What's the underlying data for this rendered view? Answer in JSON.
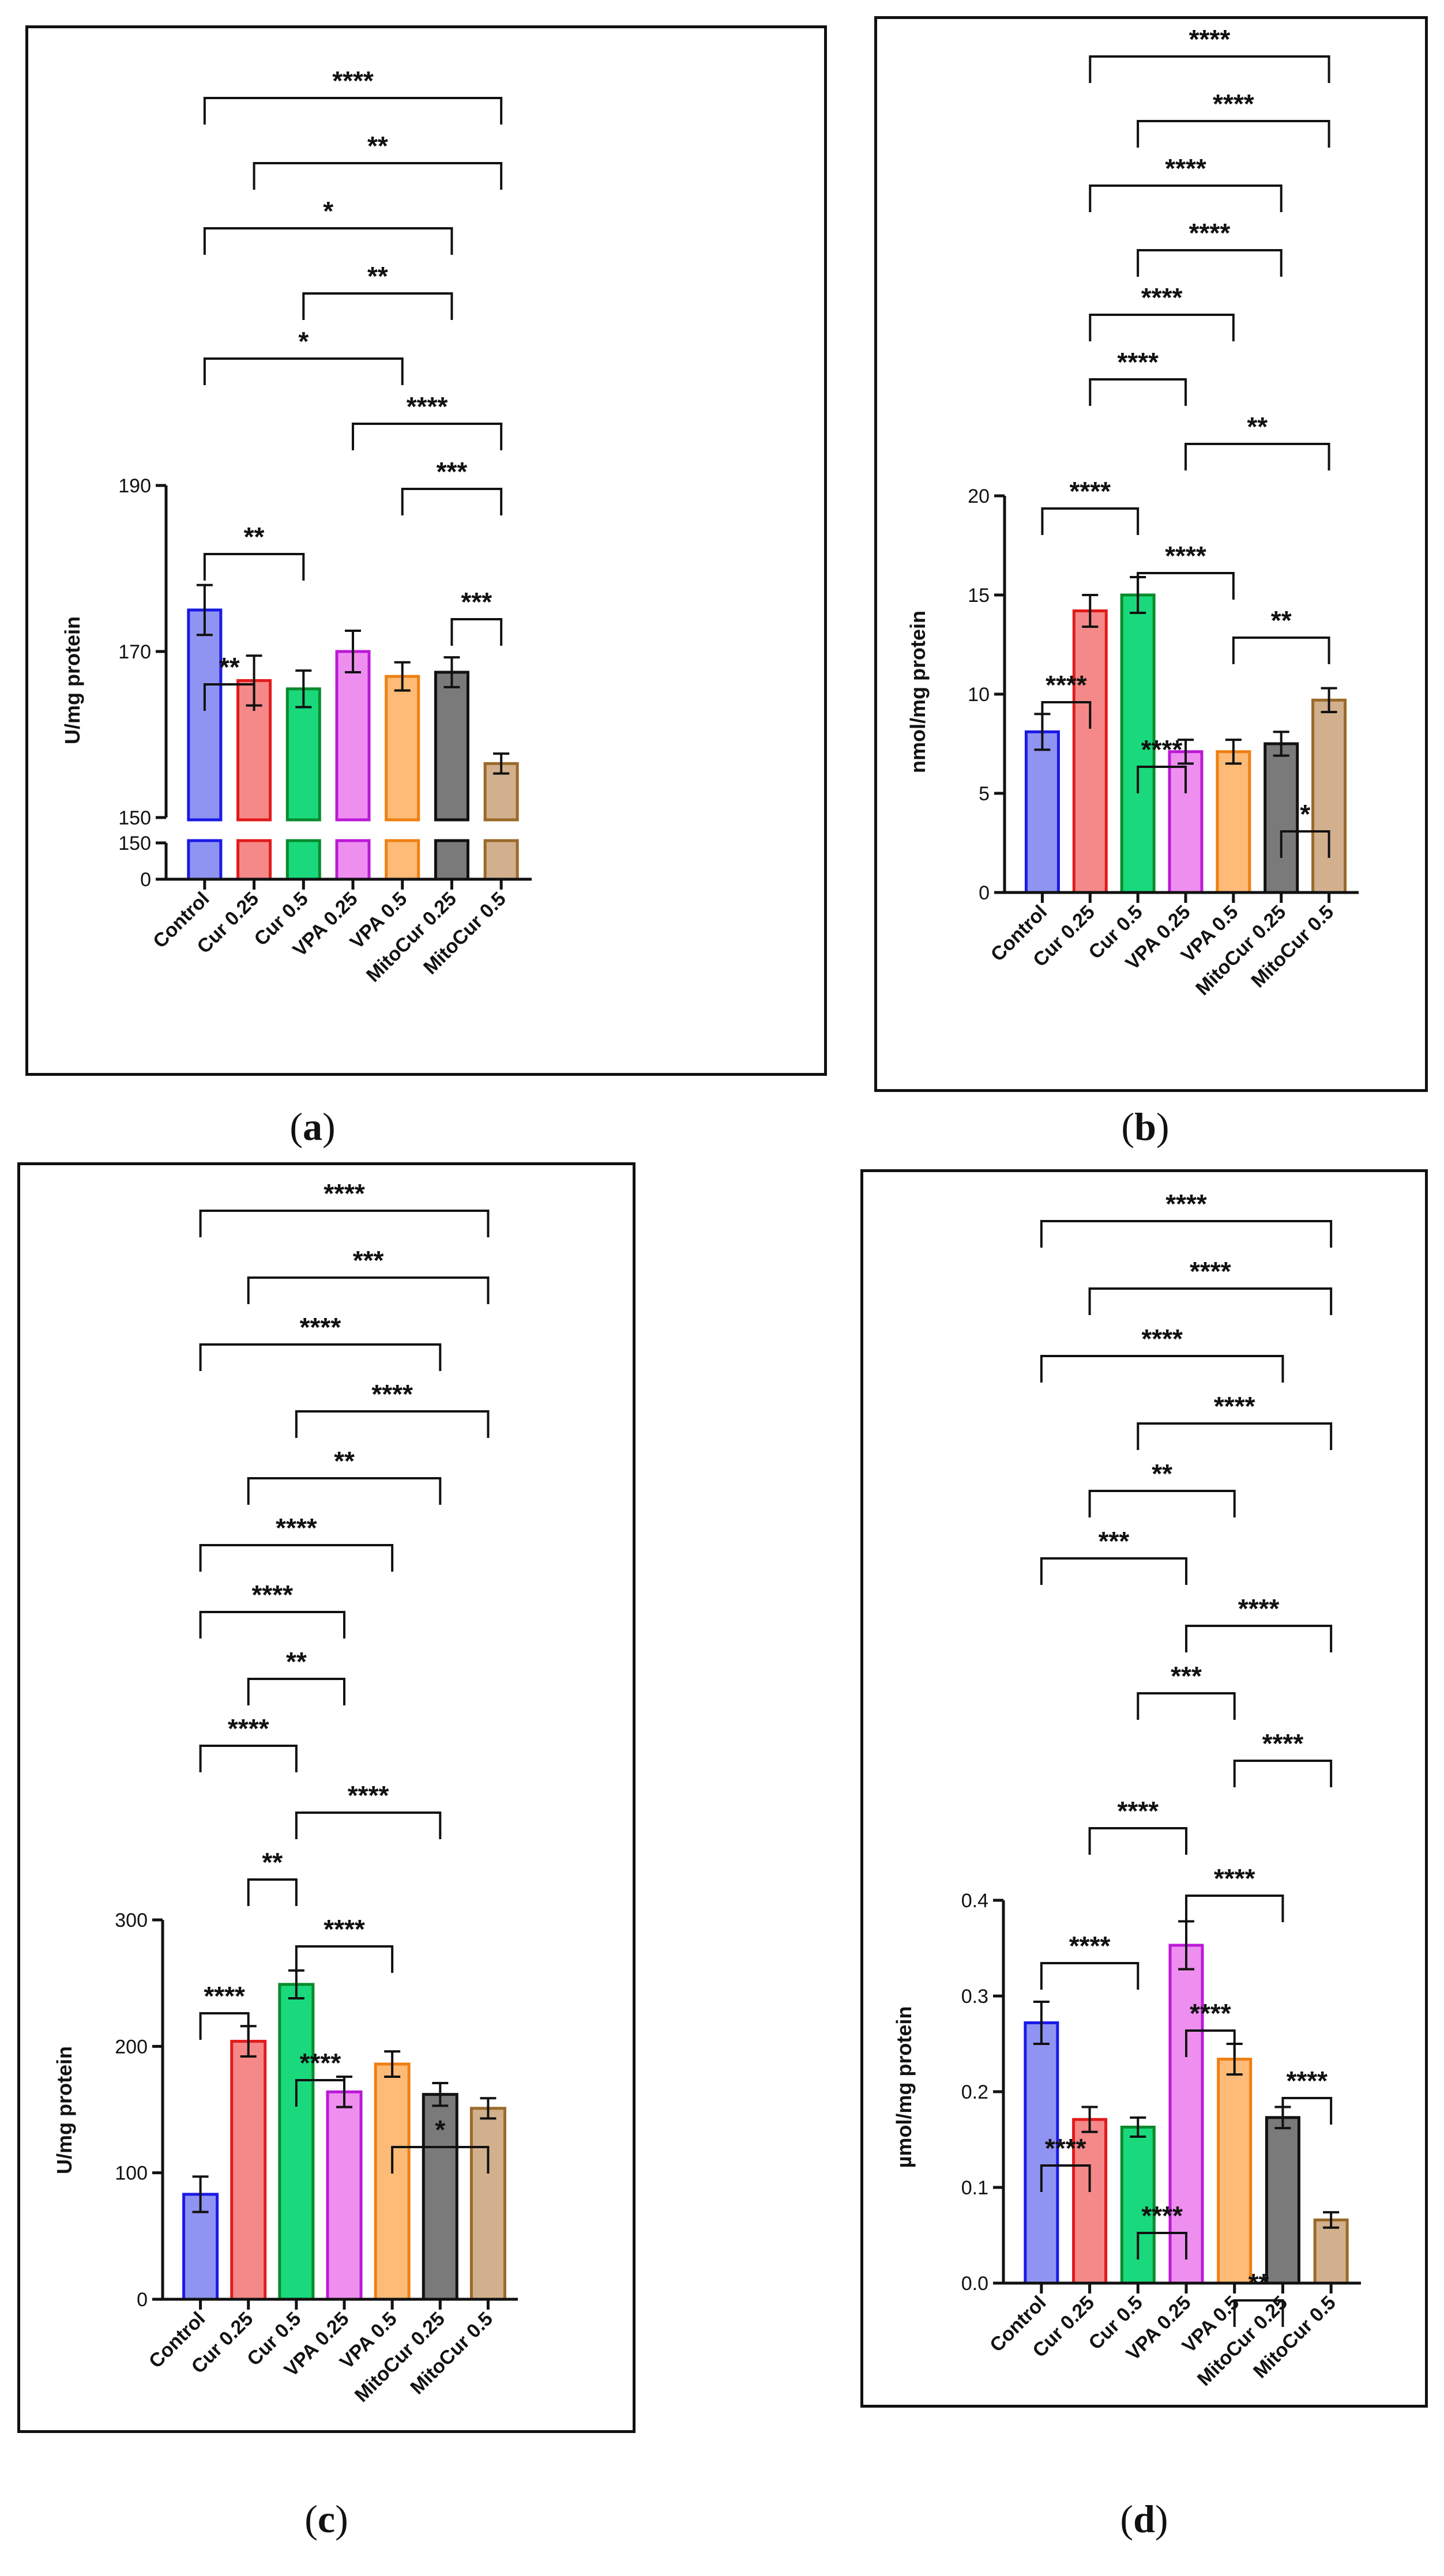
{
  "colors": {
    "axis": "#111111",
    "bars": [
      {
        "fill": "#8f94f2",
        "stroke": "#1a1ae6"
      },
      {
        "fill": "#f58888",
        "stroke": "#e01b1b"
      },
      {
        "fill": "#19d97c",
        "stroke": "#0b8a2c"
      },
      {
        "fill": "#ee8ff0",
        "stroke": "#bb19d6"
      },
      {
        "fill": "#fdbb77",
        "stroke": "#ef7f12"
      },
      {
        "fill": "#7a7a7a",
        "stroke": "#111111"
      },
      {
        "fill": "#d2b08d",
        "stroke": "#9a6a2a"
      }
    ]
  },
  "chart_data": [
    {
      "panel": "a",
      "caption": "a",
      "type": "bar",
      "ylabel": "U/mg protein",
      "categories": [
        "Control",
        "Cur 0.25",
        "Cur 0.5",
        "VPA 0.25",
        "VPA 0.5",
        "MitoCur 0.25",
        "MitoCur 0.5"
      ],
      "values": [
        175,
        166.5,
        165.5,
        170,
        167,
        167.5,
        156.5
      ],
      "errors": [
        3,
        3,
        2.2,
        2.5,
        1.7,
        1.8,
        1.2
      ],
      "axis_break": true,
      "upper_range": [
        150,
        190
      ],
      "lower_range": [
        0,
        150
      ],
      "yticks_upper": [
        150,
        170,
        190
      ],
      "yticks_lower": [
        0,
        150
      ],
      "comparisons": [
        {
          "a": 0,
          "b": 6,
          "label": "****"
        },
        {
          "a": 1,
          "b": 6,
          "label": "**"
        },
        {
          "a": 0,
          "b": 5,
          "label": "*"
        },
        {
          "a": 2,
          "b": 5,
          "label": "**"
        },
        {
          "a": 0,
          "b": 4,
          "label": "*"
        },
        {
          "a": 3,
          "b": 6,
          "label": "****"
        },
        {
          "a": 4,
          "b": 6,
          "label": "***"
        },
        {
          "a": 0,
          "b": 2,
          "label": "**"
        },
        {
          "a": 5,
          "b": 6,
          "label": "***"
        },
        {
          "a": 0,
          "b": 1,
          "label": "**"
        }
      ]
    },
    {
      "panel": "b",
      "caption": "b",
      "type": "bar",
      "ylabel": "nmol/mg protein",
      "categories": [
        "Control",
        "Cur 0.25",
        "Cur 0.5",
        "VPA 0.25",
        "VPA 0.5",
        "MitoCur 0.25",
        "MitoCur 0.5"
      ],
      "values": [
        8.1,
        14.2,
        15.0,
        7.1,
        7.1,
        7.5,
        9.7
      ],
      "errors": [
        0.9,
        0.8,
        0.9,
        0.6,
        0.6,
        0.6,
        0.6
      ],
      "ylim": [
        0,
        20
      ],
      "yticks": [
        0,
        5,
        10,
        15,
        20
      ],
      "comparisons": [
        {
          "a": 1,
          "b": 6,
          "label": "****"
        },
        {
          "a": 2,
          "b": 6,
          "label": "****"
        },
        {
          "a": 1,
          "b": 5,
          "label": "****"
        },
        {
          "a": 2,
          "b": 5,
          "label": "****"
        },
        {
          "a": 1,
          "b": 4,
          "label": "****"
        },
        {
          "a": 1,
          "b": 3,
          "label": "****"
        },
        {
          "a": 3,
          "b": 6,
          "label": "**"
        },
        {
          "a": 0,
          "b": 2,
          "label": "****"
        },
        {
          "a": 2,
          "b": 4,
          "label": "****"
        },
        {
          "a": 4,
          "b": 6,
          "label": "**"
        },
        {
          "a": 0,
          "b": 1,
          "label": "****"
        },
        {
          "a": 2,
          "b": 3,
          "label": "****"
        },
        {
          "a": 5,
          "b": 6,
          "label": "*"
        }
      ]
    },
    {
      "panel": "c",
      "caption": "c",
      "type": "bar",
      "ylabel": "U/mg protein",
      "categories": [
        "Control",
        "Cur 0.25",
        "Cur 0.5",
        "VPA 0.25",
        "VPA 0.5",
        "MitoCur 0.25",
        "MitoCur 0.5"
      ],
      "values": [
        83,
        204,
        249,
        164,
        186,
        162,
        151
      ],
      "errors": [
        14,
        12,
        11,
        12,
        10,
        9,
        8
      ],
      "ylim": [
        0,
        300
      ],
      "yticks": [
        0,
        100,
        200,
        300
      ],
      "comparisons": [
        {
          "a": 0,
          "b": 6,
          "label": "****"
        },
        {
          "a": 1,
          "b": 6,
          "label": "***"
        },
        {
          "a": 0,
          "b": 5,
          "label": "****"
        },
        {
          "a": 2,
          "b": 6,
          "label": "****"
        },
        {
          "a": 1,
          "b": 5,
          "label": "**"
        },
        {
          "a": 0,
          "b": 4,
          "label": "****"
        },
        {
          "a": 0,
          "b": 3,
          "label": "****"
        },
        {
          "a": 1,
          "b": 3,
          "label": "**"
        },
        {
          "a": 0,
          "b": 2,
          "label": "****"
        },
        {
          "a": 2,
          "b": 5,
          "label": "****"
        },
        {
          "a": 1,
          "b": 2,
          "label": "**"
        },
        {
          "a": 2,
          "b": 4,
          "label": "****"
        },
        {
          "a": 0,
          "b": 1,
          "label": "****"
        },
        {
          "a": 2,
          "b": 3,
          "label": "****"
        },
        {
          "a": 4,
          "b": 6,
          "label": "*"
        }
      ]
    },
    {
      "panel": "d",
      "caption": "d",
      "type": "bar",
      "ylabel": "µmol/mg protein",
      "categories": [
        "Control",
        "Cur 0.25",
        "Cur 0.5",
        "VPA 0.25",
        "VPA 0.5",
        "MitoCur 0.25",
        "MitoCur 0.5"
      ],
      "values": [
        0.272,
        0.171,
        0.163,
        0.353,
        0.234,
        0.173,
        0.066
      ],
      "errors": [
        0.022,
        0.013,
        0.01,
        0.025,
        0.016,
        0.011,
        0.008
      ],
      "ylim": [
        0,
        0.4
      ],
      "yticks": [
        0.0,
        0.1,
        0.2,
        0.3,
        0.4
      ],
      "ytick_decimals": 1,
      "comparisons": [
        {
          "a": 0,
          "b": 6,
          "label": "****"
        },
        {
          "a": 1,
          "b": 6,
          "label": "****"
        },
        {
          "a": 0,
          "b": 5,
          "label": "****"
        },
        {
          "a": 2,
          "b": 6,
          "label": "****"
        },
        {
          "a": 1,
          "b": 4,
          "label": "**"
        },
        {
          "a": 0,
          "b": 3,
          "label": "***"
        },
        {
          "a": 3,
          "b": 6,
          "label": "****"
        },
        {
          "a": 2,
          "b": 4,
          "label": "***"
        },
        {
          "a": 4,
          "b": 6,
          "label": "****"
        },
        {
          "a": 1,
          "b": 3,
          "label": "****"
        },
        {
          "a": 3,
          "b": 5,
          "label": "****"
        },
        {
          "a": 0,
          "b": 2,
          "label": "****"
        },
        {
          "a": 3,
          "b": 4,
          "label": "****"
        },
        {
          "a": 5,
          "b": 6,
          "label": "****"
        },
        {
          "a": 0,
          "b": 1,
          "label": "****"
        },
        {
          "a": 2,
          "b": 3,
          "label": "****"
        },
        {
          "a": 4,
          "b": 5,
          "label": "**"
        }
      ]
    }
  ]
}
